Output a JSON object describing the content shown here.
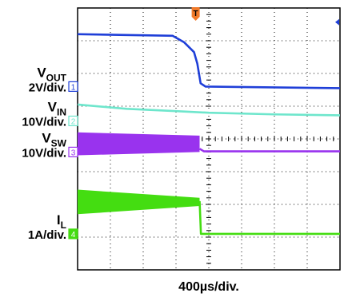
{
  "chart_data": {
    "type": "line",
    "title": "",
    "xlabel": "400µs/div.",
    "x_divisions": 8,
    "y_divisions": 8,
    "grid": true,
    "trigger_marker": "T",
    "trigger_x_div": 3.6,
    "series": [
      {
        "name": "VOUT",
        "name_main": "V",
        "name_sub": "OUT",
        "scale": "2V/div.",
        "channel": "1",
        "color": "#1f3fd8",
        "ref_div": 5.6,
        "x_div": [
          0,
          2.9,
          3.25,
          3.55,
          3.65,
          3.75,
          3.9,
          8
        ],
        "y_div": [
          7.2,
          7.15,
          6.95,
          6.65,
          6.3,
          5.7,
          5.6,
          5.55
        ]
      },
      {
        "name": "VIN",
        "name_main": "V",
        "name_sub": "IN",
        "scale": "10V/div.",
        "channel": "2",
        "color": "#6ee6cc",
        "ref_div": 4.55,
        "x_div": [
          0,
          1.5,
          3.0,
          4.0,
          6.0,
          8
        ],
        "y_div": [
          5.05,
          4.92,
          4.85,
          4.8,
          4.75,
          4.72
        ]
      },
      {
        "name": "VSW",
        "name_main": "V",
        "name_sub": "SW",
        "scale": "10V/div.",
        "channel": "3",
        "color": "#9933ee",
        "ref_div": 3.6,
        "switching": {
          "x_end_div": 3.72,
          "top_start_div": 4.2,
          "top_end_div": 4.1,
          "bot_start_div": 3.5,
          "bot_end_div": 3.6
        },
        "x_div": [
          3.72,
          3.85,
          8
        ],
        "y_div": [
          3.7,
          3.62,
          3.62
        ]
      },
      {
        "name": "IL",
        "name_main": "I",
        "name_sub": "L",
        "scale": "1A/div.",
        "channel": "4",
        "color": "#44dd11",
        "ref_div": 1.1,
        "switching": {
          "x_end_div": 3.72,
          "top_start_div": 2.45,
          "top_end_div": 2.2,
          "bot_start_div": 1.7,
          "bot_end_div": 1.95
        },
        "x_div": [
          3.72,
          3.76,
          8
        ],
        "y_div": [
          2.1,
          1.1,
          1.1
        ]
      }
    ]
  }
}
